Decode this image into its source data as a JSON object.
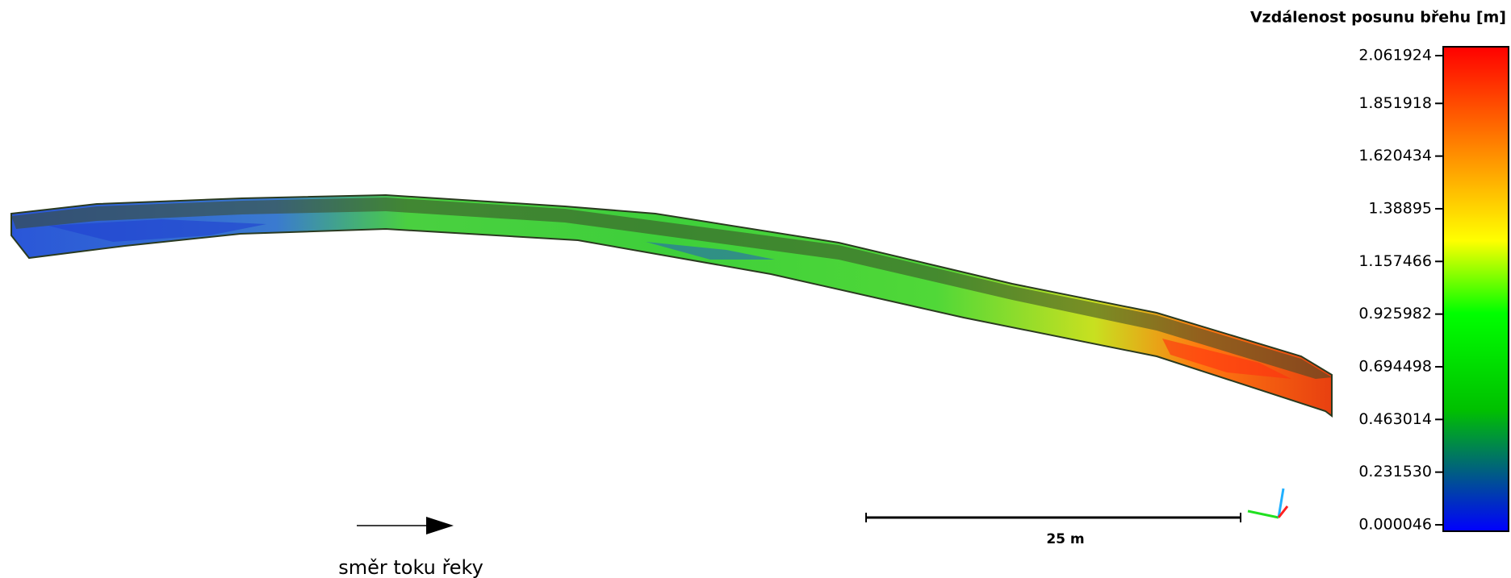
{
  "legend": {
    "title": "Vzdálenost posunu břehu [m]",
    "ticks": [
      2.061924,
      1.851918,
      1.620434,
      1.38895,
      1.157466,
      0.925982,
      0.694498,
      0.463014,
      {
        "value": 0.23153,
        "label": "0.231530"
      },
      4.6e-05
    ]
  },
  "scale_bar": {
    "label": "25 m"
  },
  "flow_arrow": {
    "label": "směr toku řeky"
  }
}
